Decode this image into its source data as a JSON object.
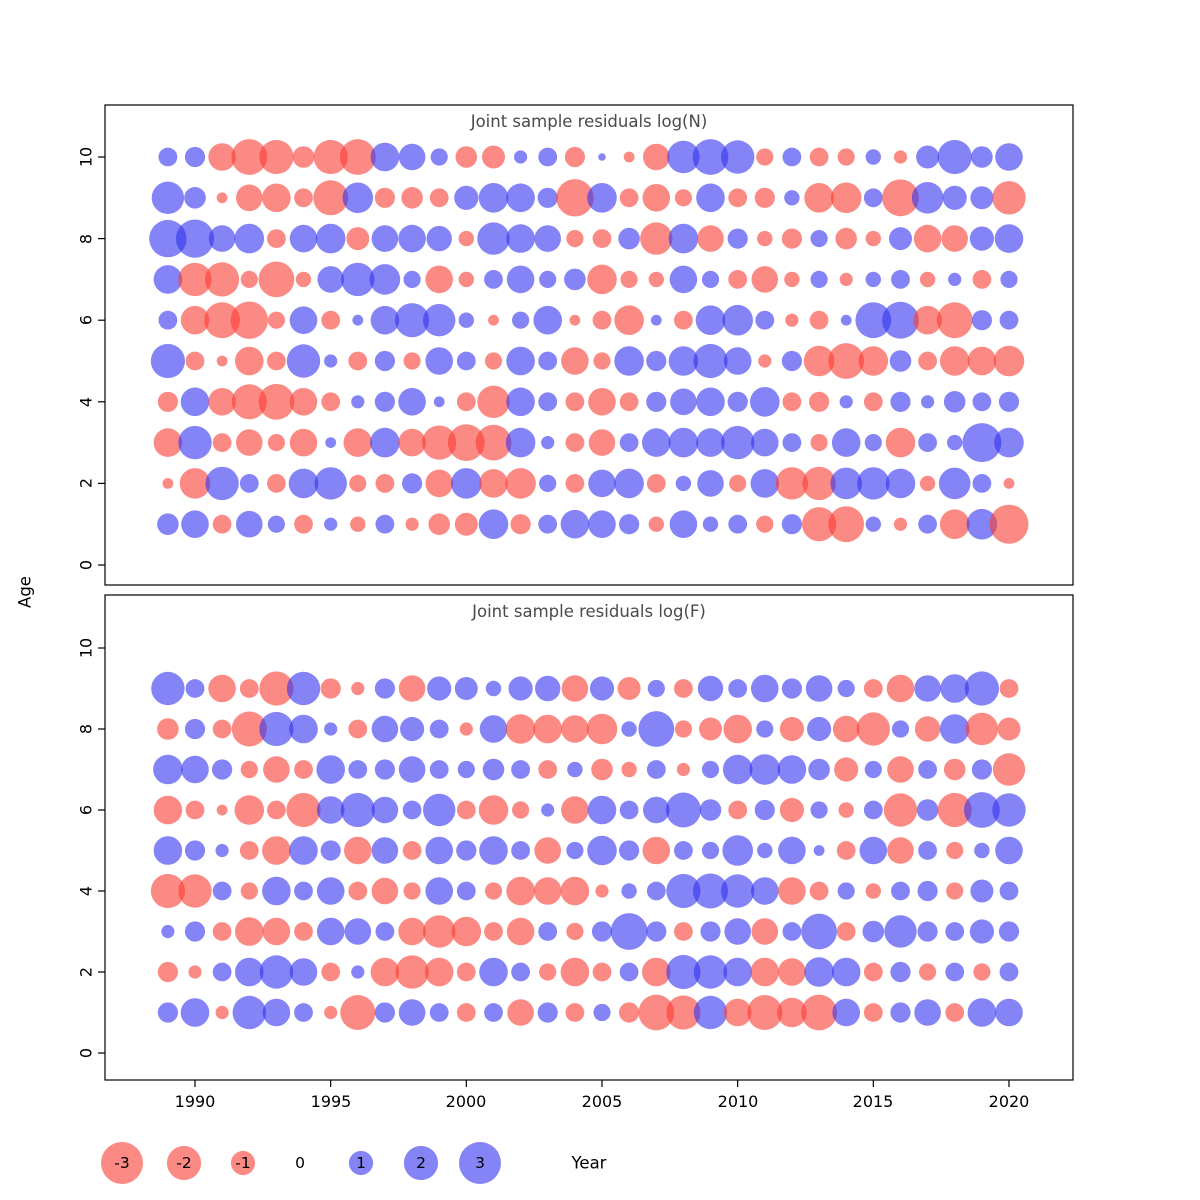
{
  "axes": {
    "ylabel": "Age",
    "xlabel": "Year",
    "x_ticks": [
      "1990",
      "1995",
      "2000",
      "2005",
      "2010",
      "2015",
      "2020"
    ],
    "y_ticks": [
      "0",
      "2",
      "4",
      "6",
      "8",
      "10"
    ]
  },
  "style": {
    "negative_color": "#fa3c32",
    "positive_color": "#3232f0",
    "opacity": 0.6
  },
  "legend": {
    "items": [
      {
        "label": "-3",
        "value": -3
      },
      {
        "label": "-2",
        "value": -2
      },
      {
        "label": "-1",
        "value": -1
      },
      {
        "label": "0",
        "value": 0
      },
      {
        "label": "1",
        "value": 1
      },
      {
        "label": "2",
        "value": 2
      },
      {
        "label": "3",
        "value": 3
      }
    ]
  },
  "chart_data": [
    {
      "type": "bubble",
      "title": "Joint sample residuals log(N)",
      "xlabel": "Year",
      "ylabel": "Age",
      "xlim": [
        1988,
        2022
      ],
      "ylim": [
        0,
        11
      ],
      "legend_note": "red = negative residual, blue = positive residual, area ~ |value|",
      "years": [
        1989,
        1990,
        1991,
        1992,
        1993,
        1994,
        1995,
        1996,
        1997,
        1998,
        1999,
        2000,
        2001,
        2002,
        2003,
        2004,
        2005,
        2006,
        2007,
        2008,
        2009,
        2010,
        2011,
        2012,
        2013,
        2014,
        2015,
        2016,
        2017,
        2018,
        2019,
        2020
      ],
      "ages": [
        1,
        2,
        3,
        4,
        5,
        6,
        7,
        8,
        9,
        10
      ],
      "values": [
        [
          0.8,
          1.3,
          -0.6,
          1.2,
          0.5,
          -0.6,
          0.3,
          -0.4,
          0.6,
          -0.3,
          -0.8,
          -0.9,
          1.5,
          -0.7,
          0.6,
          1.4,
          1.3,
          0.7,
          -0.4,
          1.3,
          0.4,
          0.6,
          -0.5,
          0.7,
          -2.0,
          -2.2,
          0.4,
          -0.3,
          0.6,
          -1.5,
          1.6,
          -2.6
        ],
        [
          -0.2,
          -1.6,
          1.9,
          0.6,
          -0.6,
          1.5,
          1.8,
          -0.5,
          -0.6,
          0.7,
          -1.3,
          1.6,
          -1.4,
          -1.6,
          0.5,
          -0.6,
          1.3,
          1.5,
          -0.6,
          0.4,
          1.2,
          -0.5,
          1.4,
          -1.8,
          -1.9,
          1.7,
          1.8,
          1.5,
          -0.4,
          1.7,
          0.6,
          -0.2
        ],
        [
          -1.4,
          1.9,
          -0.6,
          -1.2,
          -0.5,
          -1.3,
          0.2,
          -1.4,
          1.5,
          -1.3,
          -2.0,
          -2.3,
          -2.2,
          1.5,
          0.3,
          -0.6,
          -1.2,
          0.6,
          1.4,
          1.5,
          1.4,
          1.9,
          1.3,
          0.6,
          -0.5,
          1.4,
          0.5,
          -1.5,
          0.6,
          0.4,
          2.6,
          1.5
        ],
        [
          -0.7,
          1.4,
          -1.3,
          -2.1,
          -2.2,
          -1.3,
          -0.6,
          0.3,
          0.7,
          1.3,
          0.2,
          -0.6,
          -1.8,
          1.4,
          0.6,
          -0.6,
          -1.3,
          -0.6,
          0.7,
          1.2,
          1.4,
          0.7,
          1.5,
          -0.6,
          -0.7,
          0.3,
          -0.6,
          0.7,
          0.3,
          0.8,
          0.6,
          0.7
        ],
        [
          2.0,
          -0.6,
          -0.2,
          -1.4,
          -0.6,
          1.9,
          0.3,
          -0.6,
          0.7,
          -0.5,
          1.3,
          0.6,
          -0.5,
          1.4,
          0.6,
          -1.3,
          -0.5,
          1.5,
          0.7,
          1.5,
          2.0,
          1.3,
          -0.3,
          0.7,
          -1.6,
          -2.2,
          -1.5,
          0.8,
          -0.6,
          -1.5,
          -1.4,
          -1.6
        ],
        [
          0.6,
          -1.4,
          -2.2,
          -2.4,
          -0.5,
          1.3,
          -0.6,
          0.2,
          1.4,
          2.0,
          1.8,
          0.4,
          -0.2,
          0.5,
          1.4,
          -0.2,
          -0.6,
          -1.5,
          0.2,
          -0.6,
          1.5,
          1.6,
          0.6,
          -0.3,
          -0.6,
          0.2,
          2.2,
          2.3,
          -1.4,
          -2.2,
          0.7,
          0.6
        ],
        [
          1.4,
          -1.9,
          -2.0,
          -0.5,
          -2.2,
          -0.4,
          1.2,
          1.9,
          1.6,
          0.5,
          -1.3,
          -0.4,
          0.6,
          1.3,
          0.5,
          0.8,
          -1.5,
          -0.5,
          -0.4,
          1.3,
          0.5,
          -0.6,
          -1.2,
          -0.4,
          0.5,
          -0.3,
          0.4,
          0.6,
          -0.4,
          0.3,
          -0.6,
          0.5
        ],
        [
          2.4,
          2.5,
          1.2,
          1.5,
          -0.6,
          1.3,
          1.5,
          -0.9,
          1.2,
          1.3,
          1.1,
          -0.4,
          1.8,
          1.4,
          1.2,
          -0.5,
          -0.6,
          0.8,
          -1.8,
          1.5,
          -1.2,
          0.7,
          -0.4,
          -0.7,
          0.5,
          -0.8,
          -0.4,
          0.9,
          -1.3,
          -1.2,
          1.0,
          1.4
        ],
        [
          1.8,
          0.8,
          -0.2,
          -1.2,
          -1.4,
          -0.6,
          -2.1,
          1.6,
          -0.7,
          -0.8,
          -0.6,
          1.0,
          1.5,
          1.4,
          0.7,
          -2.4,
          1.5,
          -0.6,
          -1.3,
          -0.5,
          1.4,
          -0.6,
          -0.7,
          0.4,
          -1.5,
          -1.6,
          0.6,
          -2.3,
          1.7,
          1.0,
          0.9,
          -1.9
        ],
        [
          0.6,
          0.7,
          -1.3,
          -2.2,
          -2.0,
          -0.8,
          -2.0,
          -2.2,
          1.4,
          1.2,
          0.5,
          -0.8,
          -0.9,
          0.3,
          0.6,
          -0.7,
          0.1,
          -0.2,
          -1.2,
          1.8,
          2.2,
          1.9,
          -0.5,
          0.6,
          -0.6,
          -0.5,
          0.4,
          -0.3,
          0.9,
          2.0,
          0.8,
          1.3
        ]
      ]
    },
    {
      "type": "bubble",
      "title": "Joint sample residuals log(F)",
      "xlabel": "Year",
      "ylabel": "Age",
      "xlim": [
        1988,
        2022
      ],
      "ylim": [
        0,
        11
      ],
      "legend_note": "red = negative residual, blue = positive residual, area ~ |value|",
      "years": [
        1989,
        1990,
        1991,
        1992,
        1993,
        1994,
        1995,
        1996,
        1997,
        1998,
        1999,
        2000,
        2001,
        2002,
        2003,
        2004,
        2005,
        2006,
        2007,
        2008,
        2009,
        2010,
        2011,
        2012,
        2013,
        2014,
        2015,
        2016,
        2017,
        2018,
        2019,
        2020
      ],
      "ages": [
        1,
        2,
        3,
        4,
        5,
        6,
        7,
        8,
        9
      ],
      "values": [
        [
          0.7,
          1.4,
          -0.3,
          1.9,
          1.3,
          0.6,
          -0.3,
          -2.1,
          0.7,
          1.2,
          0.6,
          -0.6,
          0.6,
          -1.2,
          0.7,
          -0.6,
          0.5,
          -0.7,
          -2.2,
          -2.0,
          1.9,
          -1.3,
          -2.1,
          -1.5,
          -2.2,
          1.3,
          -0.6,
          0.7,
          1.2,
          -0.6,
          1.4,
          1.3
        ],
        [
          -0.7,
          -0.3,
          0.6,
          1.4,
          1.9,
          1.3,
          -0.6,
          0.3,
          -1.4,
          -1.9,
          -1.4,
          -0.6,
          1.4,
          0.6,
          -0.5,
          -1.4,
          -0.6,
          0.6,
          -1.4,
          2.0,
          1.9,
          1.4,
          -1.4,
          -1.3,
          1.5,
          1.4,
          -0.6,
          0.7,
          -0.5,
          0.6,
          -0.5,
          0.6
        ],
        [
          0.3,
          0.7,
          -0.6,
          -1.4,
          -1.3,
          -0.6,
          1.3,
          1.2,
          0.6,
          -1.3,
          -1.8,
          -1.5,
          -0.6,
          -1.3,
          0.6,
          -0.5,
          0.7,
          2.3,
          0.7,
          -0.6,
          0.7,
          1.2,
          -1.2,
          0.6,
          2.2,
          -0.6,
          0.8,
          1.8,
          0.7,
          0.6,
          1.0,
          0.7
        ],
        [
          -2.0,
          -1.9,
          0.6,
          -0.5,
          1.4,
          0.6,
          1.3,
          -0.6,
          -1.2,
          -0.5,
          1.3,
          0.6,
          -0.5,
          -1.4,
          -1.3,
          -1.4,
          -0.3,
          0.4,
          0.6,
          2.0,
          2.1,
          1.9,
          1.3,
          -1.3,
          -0.6,
          0.5,
          -0.4,
          0.6,
          0.7,
          -0.5,
          0.9,
          0.6
        ],
        [
          1.4,
          0.7,
          0.3,
          -0.6,
          -1.4,
          1.4,
          0.7,
          -1.3,
          1.2,
          -0.6,
          1.3,
          0.7,
          1.4,
          0.6,
          -1.2,
          0.5,
          1.5,
          0.7,
          -1.3,
          0.6,
          0.5,
          1.6,
          0.4,
          1.3,
          0.2,
          -0.6,
          1.3,
          -1.2,
          0.6,
          -0.5,
          0.4,
          1.3
        ],
        [
          -1.4,
          -0.6,
          -0.2,
          -1.5,
          -0.6,
          -2.0,
          1.3,
          2.0,
          1.2,
          0.6,
          1.8,
          -0.6,
          -1.5,
          -0.5,
          0.3,
          -1.3,
          1.4,
          0.6,
          1.2,
          2.1,
          0.8,
          -0.6,
          0.7,
          -1.0,
          0.5,
          -0.4,
          0.6,
          -1.9,
          0.8,
          -2.0,
          2.2,
          1.9
        ],
        [
          1.5,
          1.3,
          0.7,
          -0.5,
          -1.2,
          -0.6,
          1.4,
          0.6,
          0.7,
          1.2,
          0.6,
          0.5,
          0.8,
          0.6,
          -0.6,
          0.4,
          -0.8,
          -0.4,
          0.6,
          -0.3,
          0.5,
          1.5,
          1.6,
          1.4,
          0.8,
          -1.0,
          0.5,
          -1.2,
          0.6,
          -0.8,
          0.7,
          -1.8
        ],
        [
          -0.8,
          0.7,
          -0.6,
          -2.1,
          2.0,
          1.4,
          0.3,
          -0.6,
          1.2,
          1.0,
          0.6,
          -0.3,
          1.3,
          -1.5,
          -1.4,
          -1.3,
          -1.6,
          0.4,
          2.2,
          -0.5,
          -0.9,
          -1.4,
          0.5,
          -1.0,
          1.0,
          -1.2,
          -1.9,
          0.5,
          -1.1,
          1.5,
          -1.8,
          -0.9
        ],
        [
          1.9,
          0.6,
          -1.3,
          -0.6,
          -2.0,
          1.9,
          -0.7,
          -0.3,
          0.7,
          -1.2,
          1.0,
          0.9,
          0.4,
          1.0,
          1.1,
          -1.2,
          1.0,
          -0.9,
          0.5,
          -0.6,
          1.1,
          0.6,
          1.3,
          0.7,
          1.2,
          0.5,
          -0.6,
          -1.3,
          1.2,
          1.4,
          2.0,
          -0.6
        ]
      ]
    }
  ]
}
